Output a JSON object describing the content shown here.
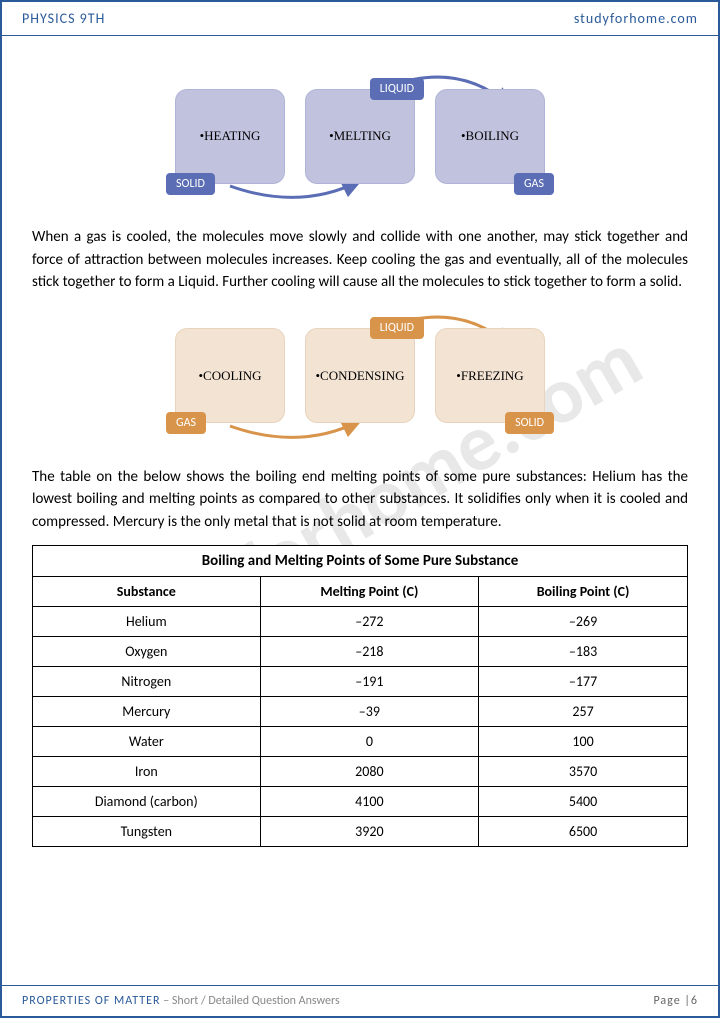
{
  "header": {
    "left": "PHYSICS 9TH",
    "right": "studyforhome.com"
  },
  "diagram1": {
    "box_bg": "#c1c3de",
    "box_border": "#b0b3d8",
    "tag_bg": "#5a6db5",
    "arrow_color": "#5a6db5",
    "boxes": [
      {
        "label": "•HEATING",
        "tag": "SOLID",
        "tag_pos": "bl"
      },
      {
        "label": "•MELTING",
        "tag": "LIQUID",
        "tag_pos": "tr"
      },
      {
        "label": "•BOILING",
        "tag": "GAS",
        "tag_pos": "br"
      }
    ]
  },
  "para1": "When a gas is cooled, the molecules move slowly and collide with one another, may stick together and force of attraction between molecules increases. Keep cooling the gas and eventually, all of the molecules stick together to form a Liquid. Further cooling will cause all the molecules to stick together to form a solid.",
  "diagram2": {
    "box_bg": "#f2e3d3",
    "box_border": "#e8d4bd",
    "tag_bg": "#d8944a",
    "arrow_color": "#d8944a",
    "boxes": [
      {
        "label": "•COOLING",
        "tag": "GAS",
        "tag_pos": "bl"
      },
      {
        "label": "•CONDENSING",
        "tag": "LIQUID",
        "tag_pos": "tr"
      },
      {
        "label": "•FREEZING",
        "tag": "SOLID",
        "tag_pos": "br"
      }
    ]
  },
  "para2": "The table on the below shows the boiling end melting points of some pure substances: Helium has the lowest boiling and melting points as compared to other substances. It solidifies only when it is cooled and compressed. Mercury is the only metal that is not solid at room temperature.",
  "table": {
    "title": "Boiling and Melting Points of Some Pure Substance",
    "columns": [
      "Substance",
      "Melting Point (C)",
      "Boiling Point (C)"
    ],
    "rows": [
      [
        "Helium",
        "–272",
        "–269"
      ],
      [
        "Oxygen",
        "–218",
        "–183"
      ],
      [
        "Nitrogen",
        "–191",
        "–177"
      ],
      [
        "Mercury",
        "–39",
        "257"
      ],
      [
        "Water",
        "0",
        "100"
      ],
      [
        "Iron",
        "2080",
        "3570"
      ],
      [
        "Diamond (carbon)",
        "4100",
        "5400"
      ],
      [
        "Tungsten",
        "3920",
        "6500"
      ]
    ]
  },
  "footer": {
    "title": "PROPERTIES OF MATTER",
    "sub": " – Short / Detailed Question Answers",
    "page": "Page |6"
  },
  "watermark": "studyforhome.com"
}
